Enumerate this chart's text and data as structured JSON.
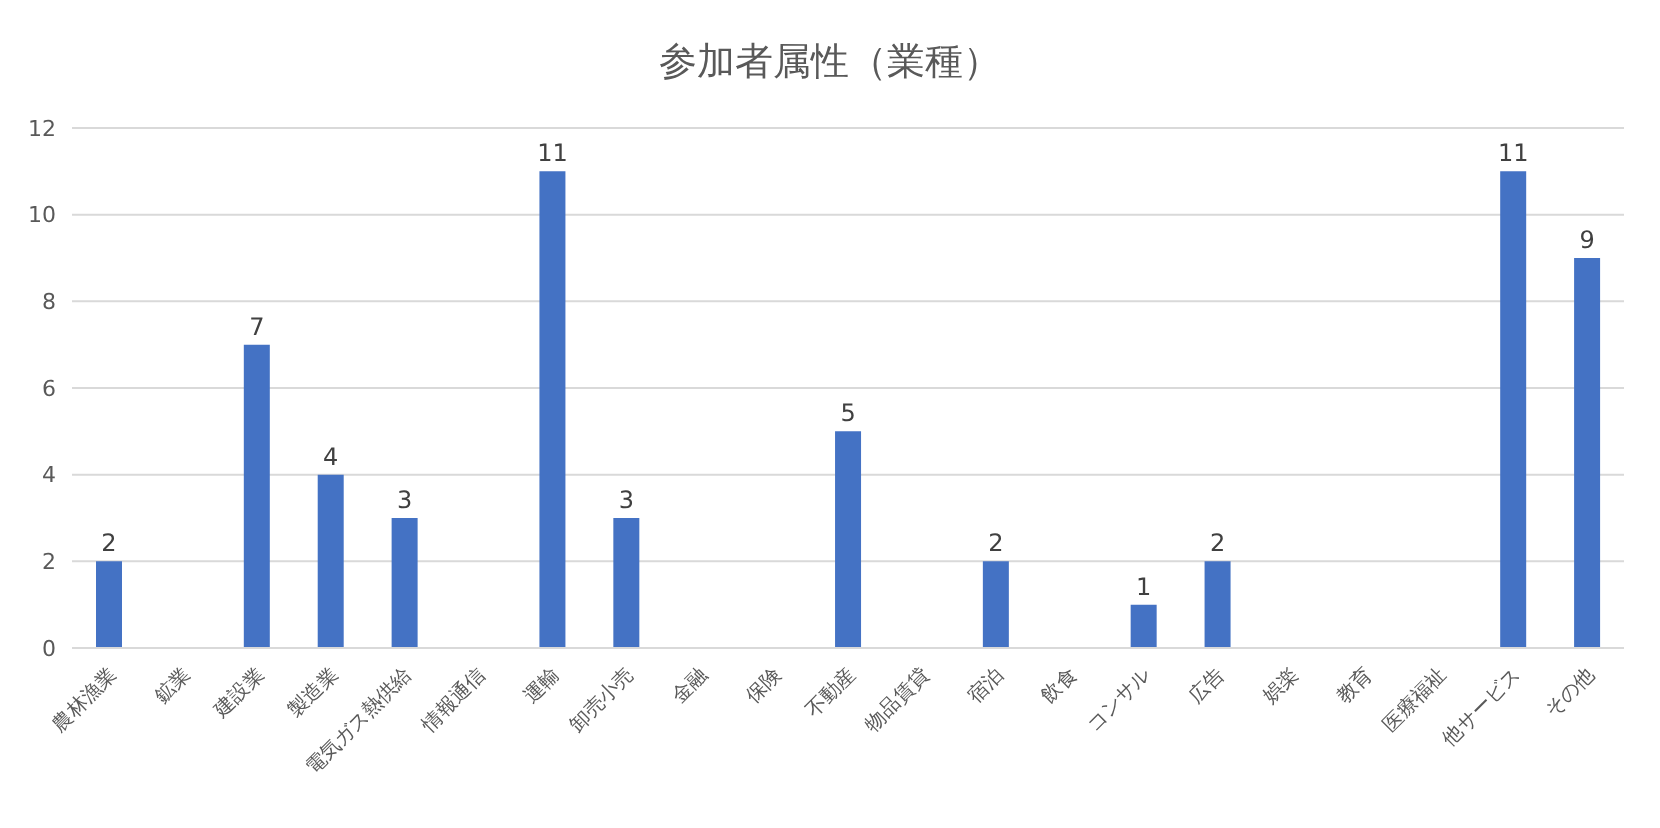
{
  "chart_data": {
    "type": "bar",
    "title": "参加者属性（業種）",
    "categories": [
      "農林漁業",
      "鉱業",
      "建設業",
      "製造業",
      "電気ガス熱供給",
      "情報通信",
      "運輸",
      "卸売小売",
      "金融",
      "保険",
      "不動産",
      "物品賃貸",
      "宿泊",
      "飲食",
      "コンサル",
      "広告",
      "娯楽",
      "教育",
      "医療福祉",
      "他サービス",
      "その他"
    ],
    "values": [
      2,
      0,
      7,
      4,
      3,
      0,
      11,
      3,
      0,
      0,
      5,
      0,
      2,
      0,
      1,
      2,
      0,
      0,
      0,
      11,
      9
    ],
    "value_labels": [
      "2",
      null,
      "7",
      "4",
      "3",
      null,
      "11",
      "3",
      null,
      null,
      "5",
      null,
      "2",
      null,
      "1",
      "2",
      null,
      null,
      null,
      "11",
      "9"
    ],
    "color": "#4472c4",
    "ylim": [
      0,
      12
    ],
    "yticks": [
      0,
      2,
      4,
      6,
      8,
      10,
      12
    ],
    "grid": "y",
    "legend": false
  }
}
